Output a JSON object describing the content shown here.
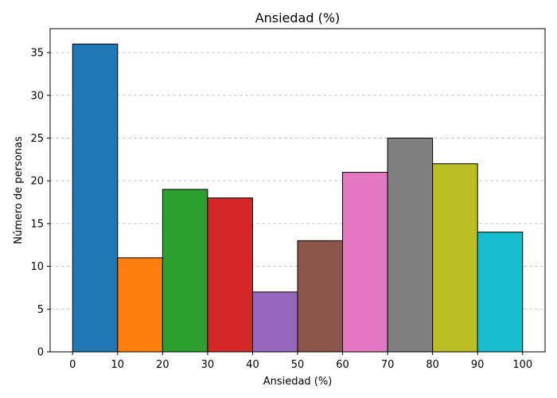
{
  "chart_data": {
    "type": "bar",
    "title": "Ansiedad (%)",
    "xlabel": "Ansiedad (%)",
    "ylabel": "Número de personas",
    "bins": [
      {
        "x0": 0,
        "x1": 10,
        "value": 36,
        "color": "#1f77b4"
      },
      {
        "x0": 10,
        "x1": 20,
        "value": 11,
        "color": "#ff7f0e"
      },
      {
        "x0": 20,
        "x1": 30,
        "value": 19,
        "color": "#2ca02c"
      },
      {
        "x0": 30,
        "x1": 40,
        "value": 18,
        "color": "#d62728"
      },
      {
        "x0": 40,
        "x1": 50,
        "value": 7,
        "color": "#9467bd"
      },
      {
        "x0": 50,
        "x1": 60,
        "value": 13,
        "color": "#8c564b"
      },
      {
        "x0": 60,
        "x1": 70,
        "value": 21,
        "color": "#e377c2"
      },
      {
        "x0": 70,
        "x1": 80,
        "value": 25,
        "color": "#7f7f7f"
      },
      {
        "x0": 80,
        "x1": 90,
        "value": 22,
        "color": "#bcbd22"
      },
      {
        "x0": 90,
        "x1": 100,
        "value": 14,
        "color": "#17becf"
      }
    ],
    "xticks": [
      "0",
      "10",
      "20",
      "30",
      "40",
      "50",
      "60",
      "70",
      "80",
      "90",
      "100"
    ],
    "yticks": [
      "0",
      "5",
      "10",
      "15",
      "20",
      "25",
      "30",
      "35"
    ],
    "xlim": [
      -5,
      105
    ],
    "ylim": [
      0,
      37.8
    ],
    "grid": "y-dashed",
    "legend": "none"
  }
}
